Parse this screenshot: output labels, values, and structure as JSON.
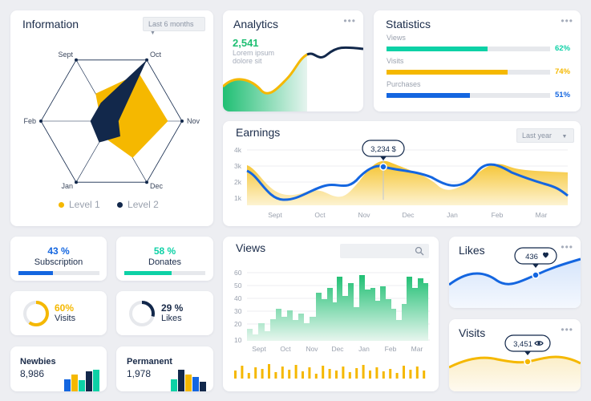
{
  "colors": {
    "yellow": "#f5b800",
    "navy": "#12284b",
    "teal": "#0dd1a6",
    "blue": "#1466e0",
    "green": "#1fbf73"
  },
  "information": {
    "title": "Information",
    "dropdown": "Last 6 months",
    "axes": [
      "Sept",
      "Oct",
      "Nov",
      "Dec",
      "Jan",
      "Feb"
    ],
    "level1_label": "Level 1",
    "level2_label": "Level 2",
    "level1": [
      0.45,
      0.78,
      0.8,
      0.6,
      0.25,
      0.15
    ],
    "level2": [
      0.3,
      1.0,
      0.1,
      0.25,
      0.35,
      0.3
    ]
  },
  "analytics": {
    "title": "Analytics",
    "value": "2,541",
    "caption_line1": "Lorem ipsum",
    "caption_line2": "dolore sit"
  },
  "statistics": {
    "title": "Statistics",
    "rows": [
      {
        "name": "Views",
        "percent": "62%",
        "value": 0.62,
        "color": "#0dd1a6"
      },
      {
        "name": "Visits",
        "percent": "74%",
        "value": 0.74,
        "color": "#f5b800"
      },
      {
        "name": "Purchases",
        "percent": "51%",
        "value": 0.51,
        "color": "#1466e0"
      }
    ]
  },
  "earnings": {
    "title": "Earnings",
    "dropdown": "Last year",
    "tooltip": "3,234 $",
    "y_ticks": [
      "4k",
      "3k",
      "2k",
      "1k"
    ],
    "x_ticks": [
      "Sept",
      "Oct",
      "Nov",
      "Dec",
      "Jan",
      "Feb",
      "Mar"
    ]
  },
  "subscription": {
    "percent": "43 %",
    "label": "Subscription",
    "value": 0.43
  },
  "donates": {
    "percent": "58 %",
    "label": "Donates",
    "value": 0.58
  },
  "visits_ring": {
    "percent": "60%",
    "label": "Visits",
    "value": 0.6
  },
  "likes_ring": {
    "percent": "29 %",
    "label": "Likes",
    "value": 0.29
  },
  "newbies": {
    "label": "Newbies",
    "value": "8,986"
  },
  "permanent": {
    "label": "Permanent",
    "value": "1,978"
  },
  "views": {
    "title": "Views",
    "y_ticks": [
      "60",
      "50",
      "40",
      "30",
      "20",
      "10"
    ],
    "x_ticks": [
      "Sept",
      "Oct",
      "Nov",
      "Dec",
      "Jan",
      "Feb",
      "Mar"
    ]
  },
  "likes_card": {
    "title": "Likes",
    "tooltip": "436"
  },
  "visits_card": {
    "title": "Visits",
    "tooltip": "3,451"
  }
}
